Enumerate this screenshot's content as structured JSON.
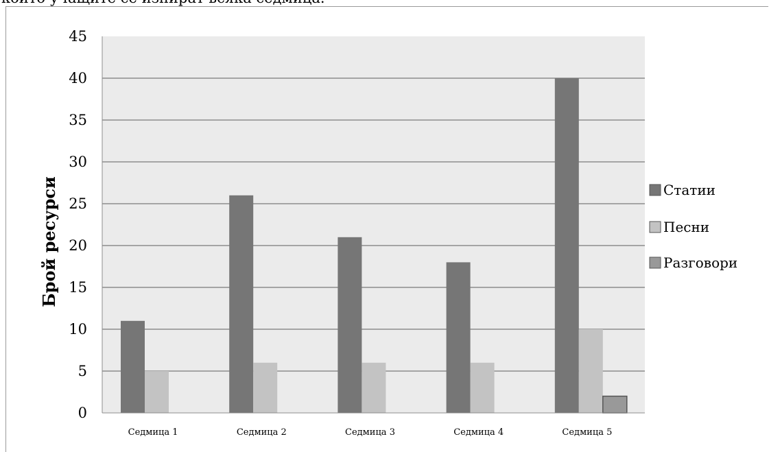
{
  "page": {
    "top_text": "които учащите се изпират всяка седмица."
  },
  "chart_data": {
    "type": "bar",
    "title": "",
    "xlabel": "",
    "ylabel": "Брой ресурси",
    "ylim": [
      0,
      45
    ],
    "yticks": [
      0,
      5,
      10,
      15,
      20,
      25,
      30,
      35,
      40,
      45
    ],
    "categories": [
      "Седмица 1",
      "Седмица 2",
      "Седмица 3",
      "Седмица 4",
      "Седмица 5"
    ],
    "series": [
      {
        "name": "Статии",
        "values": [
          11,
          26,
          21,
          18,
          40
        ],
        "color": "#767676"
      },
      {
        "name": "Песни",
        "values": [
          5,
          6,
          6,
          6,
          10
        ],
        "color": "#c3c3c3"
      },
      {
        "name": "Разговори",
        "values": [
          0,
          0,
          0,
          0,
          2
        ],
        "color": "#999999"
      }
    ],
    "grid": true,
    "legend_position": "right",
    "plot_background": "#ebebeb",
    "gridline_color": "#8c8c8c"
  }
}
